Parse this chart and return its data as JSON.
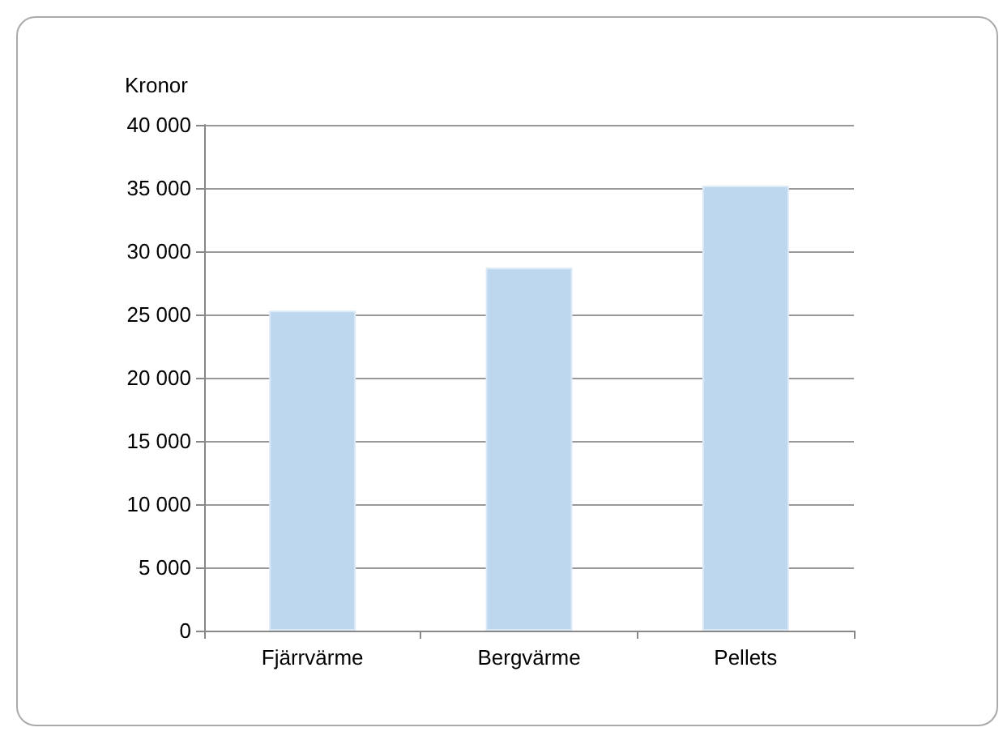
{
  "chart_data": {
    "type": "bar",
    "ylabel": "Kronor",
    "categories": [
      "Fjärrvärme",
      "Bergvärme",
      "Pellets"
    ],
    "values": [
      25300,
      28700,
      35200
    ],
    "color": "#bdd7ee",
    "ylim": [
      0,
      40000
    ],
    "yticks": [
      {
        "value": 0,
        "label": "0"
      },
      {
        "value": 5000,
        "label": "5 000"
      },
      {
        "value": 10000,
        "label": "10 000"
      },
      {
        "value": 15000,
        "label": "15 000"
      },
      {
        "value": 20000,
        "label": "20 000"
      },
      {
        "value": 25000,
        "label": "25 000"
      },
      {
        "value": 30000,
        "label": "30 000"
      },
      {
        "value": 35000,
        "label": "35 000"
      },
      {
        "value": 40000,
        "label": "40 000"
      }
    ],
    "grid": "y"
  }
}
